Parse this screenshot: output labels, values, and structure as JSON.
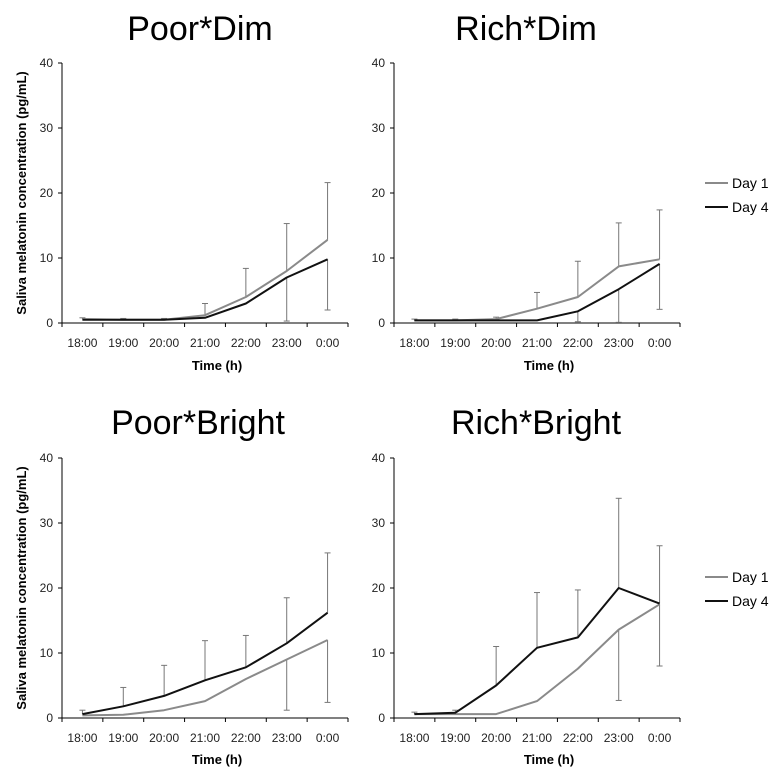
{
  "figure": {
    "ylabel": "Saliva melatonin concentration (pg/mL)"
  },
  "colors": {
    "day1": "#8a8a8a",
    "day4": "#111111"
  },
  "chart_data": [
    {
      "type": "line",
      "title": "Poor*Dim",
      "xlabel": "Time (h)",
      "ylabel": "Saliva melatonin concentration (pg/mL)",
      "categories": [
        "18:00",
        "19:00",
        "20:00",
        "21:00",
        "22:00",
        "23:00",
        "0:00"
      ],
      "ylim": [
        0,
        40
      ],
      "yticks": [
        0,
        10,
        20,
        30,
        40
      ],
      "legend": "none",
      "series": [
        {
          "name": "Day 1",
          "color": "#8a8a8a",
          "values": [
            0.6,
            0.5,
            0.5,
            1.2,
            4.0,
            8.0,
            12.8
          ],
          "error_upper": [
            0.8,
            0.7,
            0.7,
            3.0,
            8.4,
            15.3,
            21.6
          ]
        },
        {
          "name": "Day 4",
          "color": "#111111",
          "values": [
            0.5,
            0.5,
            0.5,
            0.8,
            3.0,
            7.0,
            9.8
          ],
          "error_lower": [
            null,
            null,
            null,
            null,
            null,
            0.3,
            2.0
          ]
        }
      ]
    },
    {
      "type": "line",
      "title": "Rich*Dim",
      "xlabel": "Time (h)",
      "ylabel": "",
      "categories": [
        "18:00",
        "19:00",
        "20:00",
        "21:00",
        "22:00",
        "23:00",
        "0:00"
      ],
      "ylim": [
        0,
        40
      ],
      "yticks": [
        0,
        10,
        20,
        30,
        40
      ],
      "legend": "right",
      "series": [
        {
          "name": "Day 1",
          "color": "#8a8a8a",
          "values": [
            0.4,
            0.4,
            0.6,
            2.2,
            4.0,
            8.7,
            9.8
          ],
          "error_upper": [
            0.6,
            0.6,
            0.9,
            4.7,
            9.5,
            15.4,
            17.4
          ]
        },
        {
          "name": "Day 4",
          "color": "#111111",
          "values": [
            0.4,
            0.4,
            0.4,
            0.4,
            1.8,
            5.2,
            9.1
          ],
          "error_lower": [
            null,
            null,
            null,
            null,
            0.2,
            0.1,
            2.1
          ]
        }
      ]
    },
    {
      "type": "line",
      "title": "Poor*Bright",
      "xlabel": "Time (h)",
      "ylabel": "Saliva melatonin concentration (pg/mL)",
      "categories": [
        "18:00",
        "19:00",
        "20:00",
        "21:00",
        "22:00",
        "23:00",
        "0:00"
      ],
      "ylim": [
        0,
        40
      ],
      "yticks": [
        0,
        10,
        20,
        30,
        40
      ],
      "legend": "none",
      "series": [
        {
          "name": "Day 1",
          "color": "#8a8a8a",
          "values": [
            0.4,
            0.5,
            1.2,
            2.6,
            6.0,
            9.0,
            12.0
          ],
          "error_lower": [
            null,
            null,
            null,
            null,
            null,
            1.2,
            2.4
          ]
        },
        {
          "name": "Day 4",
          "color": "#111111",
          "values": [
            0.6,
            1.8,
            3.4,
            5.8,
            7.8,
            11.5,
            16.2
          ],
          "error_upper": [
            1.2,
            4.7,
            8.1,
            11.9,
            12.7,
            18.5,
            25.4
          ]
        }
      ]
    },
    {
      "type": "line",
      "title": "Rich*Bright",
      "xlabel": "Time (h)",
      "ylabel": "",
      "categories": [
        "18:00",
        "19:00",
        "20:00",
        "21:00",
        "22:00",
        "23:00",
        "0:00"
      ],
      "ylim": [
        0,
        40
      ],
      "yticks": [
        0,
        10,
        20,
        30,
        40
      ],
      "legend": "right",
      "series": [
        {
          "name": "Day 1",
          "color": "#8a8a8a",
          "values": [
            0.6,
            0.6,
            0.6,
            2.6,
            7.6,
            13.6,
            17.5
          ],
          "error_lower": [
            null,
            null,
            null,
            null,
            null,
            2.7,
            8.0
          ]
        },
        {
          "name": "Day 4",
          "color": "#111111",
          "values": [
            0.6,
            0.8,
            5.0,
            10.8,
            12.4,
            20.0,
            17.6
          ],
          "error_upper": [
            0.9,
            1.2,
            11.0,
            19.3,
            19.7,
            33.8,
            26.5
          ]
        }
      ]
    }
  ]
}
